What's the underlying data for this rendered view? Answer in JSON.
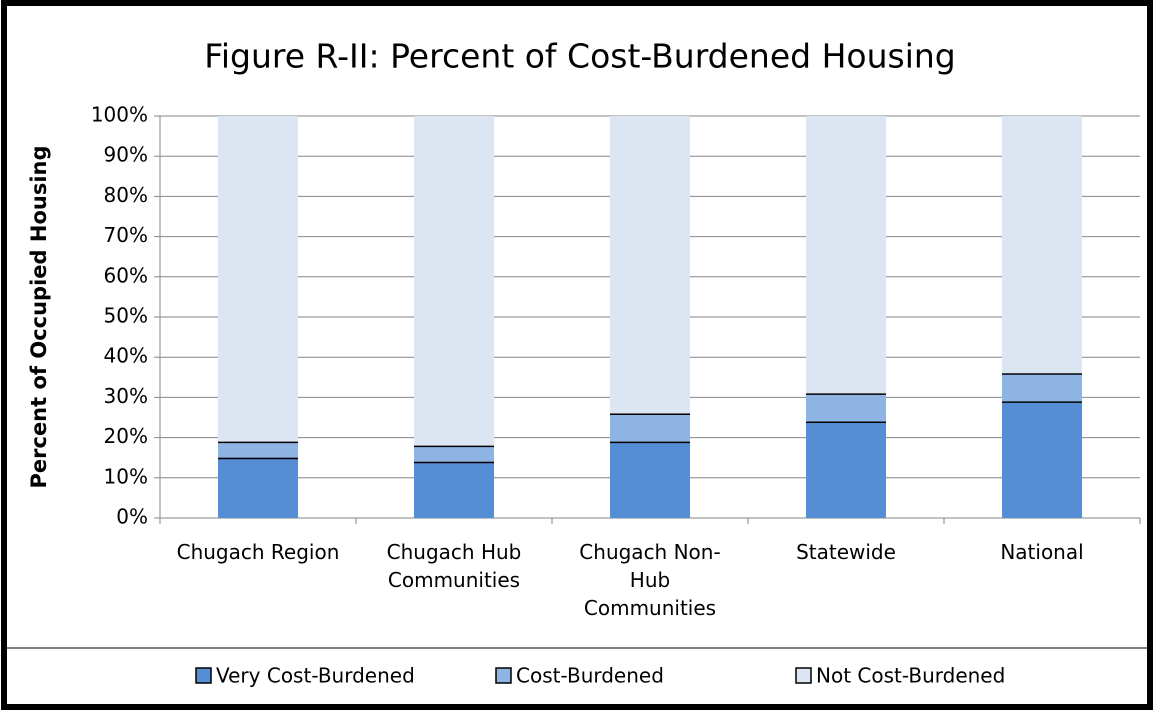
{
  "chart_data": {
    "type": "stacked_bar",
    "title": "Figure R-II: Percent of Cost-Burdened Housing",
    "y_label": "Percent of Occupied Housing",
    "categories": [
      "Chugach Region",
      "Chugach Hub Communities",
      "Chugach Non-Hub Communities",
      "Statewide",
      "National"
    ],
    "series": [
      {
        "name": "Very Cost-Burdened",
        "color": "#558ed5",
        "values": [
          15,
          14,
          19,
          24,
          29
        ]
      },
      {
        "name": "Cost-Burdened",
        "color": "#8db4e2",
        "values": [
          4,
          4,
          7,
          7,
          7
        ]
      },
      {
        "name": "Not Cost-Burdened",
        "color": "#dce6f2",
        "values": [
          81,
          82,
          74,
          69,
          64
        ]
      }
    ],
    "ylim": [
      0,
      100
    ],
    "yticks": [
      {
        "value": 0,
        "label": "0%"
      },
      {
        "value": 10,
        "label": "10%"
      },
      {
        "value": 20,
        "label": "20%"
      },
      {
        "value": 30,
        "label": "30%"
      },
      {
        "value": 40,
        "label": "40%"
      },
      {
        "value": 50,
        "label": "50%"
      },
      {
        "value": 60,
        "label": "60%"
      },
      {
        "value": 70,
        "label": "70%"
      },
      {
        "value": 80,
        "label": "80%"
      },
      {
        "value": 90,
        "label": "90%"
      },
      {
        "value": 100,
        "label": "100%"
      }
    ],
    "grid": true,
    "legend": "bottom"
  }
}
